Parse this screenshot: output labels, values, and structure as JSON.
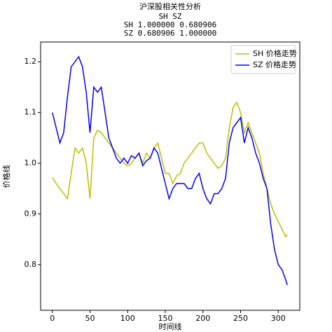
{
  "chart_data": {
    "type": "line",
    "title": "沪深股相关性分析",
    "subtitle": [
      "      SH        SZ",
      "SH  1.000000  0.680906",
      "SZ  0.680906  1.000000"
    ],
    "x_label": "时间线",
    "y_label": "价格线",
    "x": [
      0,
      5,
      10,
      15,
      20,
      25,
      30,
      35,
      40,
      45,
      50,
      55,
      60,
      65,
      70,
      75,
      80,
      85,
      90,
      95,
      100,
      105,
      110,
      115,
      120,
      125,
      130,
      135,
      140,
      145,
      150,
      155,
      160,
      165,
      170,
      175,
      180,
      185,
      190,
      195,
      200,
      205,
      210,
      215,
      220,
      225,
      230,
      235,
      240,
      245,
      250,
      255,
      260,
      265,
      270,
      275,
      280,
      285,
      290,
      295,
      300,
      305,
      310,
      312
    ],
    "series": [
      {
        "name": "SH 价格走势",
        "color": "#bfbf00",
        "values": [
          0.972,
          0.96,
          0.95,
          0.94,
          0.93,
          0.98,
          1.03,
          1.02,
          1.03,
          1.0,
          0.93,
          1.05,
          1.065,
          1.06,
          1.05,
          1.04,
          1.03,
          1.02,
          1.01,
          1.0,
          0.995,
          1.0,
          1.01,
          1.02,
          1.0,
          1.02,
          1.01,
          1.03,
          1.04,
          1.01,
          0.98,
          0.98,
          0.96,
          0.975,
          0.98,
          1.0,
          1.01,
          1.02,
          1.03,
          1.04,
          1.04,
          1.02,
          1.01,
          1.0,
          0.99,
          0.995,
          1.01,
          1.07,
          1.11,
          1.12,
          1.1,
          1.06,
          1.08,
          1.06,
          1.04,
          1.02,
          0.98,
          0.95,
          0.92,
          0.9,
          0.885,
          0.87,
          0.855,
          0.86
        ]
      },
      {
        "name": "SZ 价格走势",
        "color": "#0000ff",
        "values": [
          1.1,
          1.07,
          1.04,
          1.06,
          1.13,
          1.19,
          1.2,
          1.21,
          1.19,
          1.14,
          1.06,
          1.15,
          1.14,
          1.15,
          1.1,
          1.05,
          1.03,
          1.01,
          1.0,
          1.01,
          1.0,
          1.015,
          1.01,
          1.02,
          0.995,
          1.005,
          1.01,
          1.03,
          1.02,
          0.99,
          0.96,
          0.93,
          0.95,
          0.96,
          0.96,
          0.96,
          0.95,
          0.95,
          0.97,
          0.98,
          0.95,
          0.93,
          0.92,
          0.94,
          0.94,
          0.95,
          0.97,
          1.04,
          1.07,
          1.08,
          1.09,
          1.04,
          1.07,
          1.05,
          1.02,
          1.0,
          0.97,
          0.95,
          0.88,
          0.83,
          0.8,
          0.79,
          0.77,
          0.76
        ]
      }
    ],
    "xlim": [
      -15.6,
      328.6
    ],
    "xticks": [
      0,
      50,
      100,
      150,
      200,
      250,
      300
    ],
    "ylim": [
      0.71,
      1.239
    ],
    "yticks": [
      0.8,
      0.9,
      {
        "value": 1,
        "label": "1.0"
      },
      1.1,
      1.2
    ],
    "legend": "upper right"
  }
}
